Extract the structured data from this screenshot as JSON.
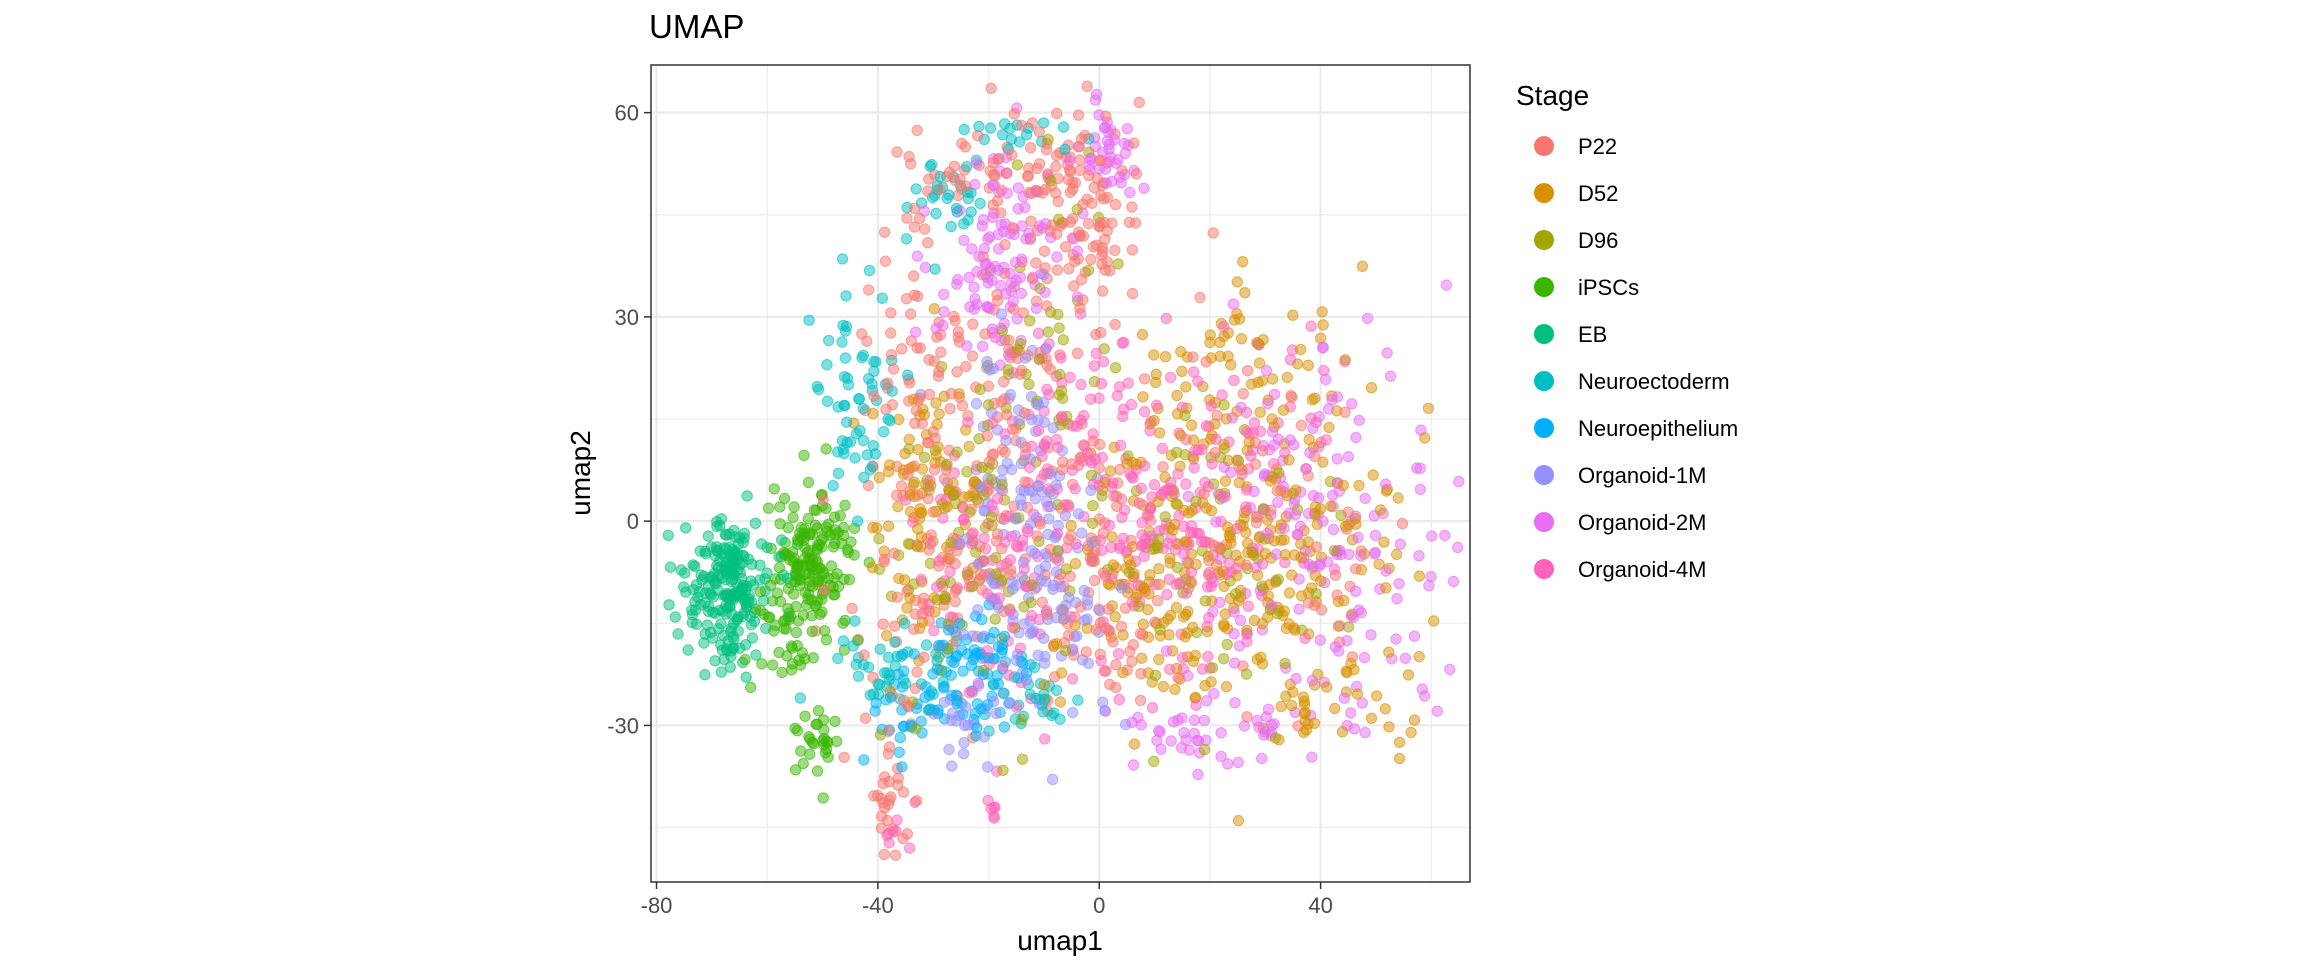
{
  "chart_data": {
    "type": "scatter",
    "title": "UMAP",
    "xlabel": "umap1",
    "ylabel": "umap2",
    "xlim": [
      -81,
      67
    ],
    "ylim": [
      -53,
      67
    ],
    "x_ticks": [
      -80,
      -40,
      0,
      40
    ],
    "y_ticks": [
      -30,
      0,
      30,
      60
    ],
    "x_tick_labels": [
      "-80",
      "-40",
      "0",
      "40"
    ],
    "y_tick_labels": [
      "-30",
      "0",
      "30",
      "60"
    ],
    "x_minor": [
      -60,
      -20,
      20,
      60
    ],
    "y_minor": [
      -45,
      -15,
      15,
      45
    ],
    "grid": true,
    "point_alpha": 0.5,
    "legend": {
      "title": "Stage",
      "position": "right",
      "entries": [
        {
          "label": "P22",
          "color": "#F8766D"
        },
        {
          "label": "D52",
          "color": "#D89000"
        },
        {
          "label": "D96",
          "color": "#A3A500"
        },
        {
          "label": "iPSCs",
          "color": "#39B600"
        },
        {
          "label": "EB",
          "color": "#00BF7D"
        },
        {
          "label": "Neuroectoderm",
          "color": "#00BFC4"
        },
        {
          "label": "Neuroepithelium",
          "color": "#00B0F6"
        },
        {
          "label": "Organoid-1M",
          "color": "#9590FF"
        },
        {
          "label": "Organoid-2M",
          "color": "#E76BF3"
        },
        {
          "label": "Organoid-4M",
          "color": "#FF62BC"
        }
      ]
    },
    "series": [
      {
        "name": "P22",
        "clusters": [
          {
            "center": [
              -5,
              48
            ],
            "spread": [
              6,
              8
            ],
            "n": 110
          },
          {
            "center": [
              -14,
              22
            ],
            "spread": [
              10,
              14
            ],
            "n": 110
          },
          {
            "center": [
              -33,
              26
            ],
            "spread": [
              4,
              14
            ],
            "n": 50
          },
          {
            "center": [
              -28,
              -6
            ],
            "spread": [
              9,
              12
            ],
            "n": 110
          },
          {
            "center": [
              0,
              -12
            ],
            "spread": [
              6,
              9
            ],
            "n": 60
          },
          {
            "center": [
              -38,
              -40
            ],
            "spread": [
              3,
              5
            ],
            "n": 30
          },
          {
            "center": [
              -20,
              52
            ],
            "spread": [
              7,
              3
            ],
            "n": 35
          },
          {
            "center": [
              30,
              0
            ],
            "spread": [
              14,
              14
            ],
            "n": 60
          }
        ]
      },
      {
        "name": "D52",
        "clusters": [
          {
            "center": [
              28,
              2
            ],
            "spread": [
              14,
              14
            ],
            "n": 260
          },
          {
            "center": [
              -32,
              3
            ],
            "spread": [
              6,
              10
            ],
            "n": 80
          },
          {
            "center": [
              10,
              -12
            ],
            "spread": [
              9,
              9
            ],
            "n": 70
          },
          {
            "center": [
              23,
              27
            ],
            "spread": [
              2,
              1.5
            ],
            "n": 12
          },
          {
            "center": [
              40,
              -28
            ],
            "spread": [
              8,
              3
            ],
            "n": 30
          }
        ]
      },
      {
        "name": "D96",
        "clusters": [
          {
            "center": [
              -22,
              -4
            ],
            "spread": [
              8,
              12
            ],
            "n": 90
          },
          {
            "center": [
              20,
              -4
            ],
            "spread": [
              12,
              13
            ],
            "n": 80
          },
          {
            "center": [
              -8,
              30
            ],
            "spread": [
              6,
              10
            ],
            "n": 40
          }
        ]
      },
      {
        "name": "iPSCs",
        "clusters": [
          {
            "center": [
              -52,
              -6
            ],
            "spread": [
              4,
              5
            ],
            "n": 150
          },
          {
            "center": [
              -51,
              -33
            ],
            "spread": [
              2,
              2.5
            ],
            "n": 28
          },
          {
            "center": [
              -56,
              -16
            ],
            "spread": [
              5,
              4
            ],
            "n": 40
          }
        ]
      },
      {
        "name": "EB",
        "clusters": [
          {
            "center": [
              -67,
              -10
            ],
            "spread": [
              4,
              5
            ],
            "n": 220
          }
        ]
      },
      {
        "name": "Neuroectoderm",
        "clusters": [
          {
            "center": [
              -44,
              18
            ],
            "spread": [
              4,
              8
            ],
            "n": 60
          },
          {
            "center": [
              -28,
              48
            ],
            "spread": [
              5,
              5
            ],
            "n": 30
          },
          {
            "center": [
              -38,
              -22
            ],
            "spread": [
              5,
              4
            ],
            "n": 40
          },
          {
            "center": [
              -16,
              57
            ],
            "spread": [
              6,
              1.5
            ],
            "n": 18
          },
          {
            "center": [
              -12,
              -26
            ],
            "spread": [
              4,
              3
            ],
            "n": 25
          }
        ]
      },
      {
        "name": "Neuroepithelium",
        "clusters": [
          {
            "center": [
              -22,
              -23
            ],
            "spread": [
              5,
              5
            ],
            "n": 80
          },
          {
            "center": [
              -35,
              -28
            ],
            "spread": [
              4,
              4
            ],
            "n": 30
          }
        ]
      },
      {
        "name": "Organoid-1M",
        "clusters": [
          {
            "center": [
              -16,
              0
            ],
            "spread": [
              6,
              14
            ],
            "n": 120
          },
          {
            "center": [
              -6,
              -12
            ],
            "spread": [
              5,
              8
            ],
            "n": 50
          },
          {
            "center": [
              -24,
              -30
            ],
            "spread": [
              3,
              4
            ],
            "n": 20
          }
        ]
      },
      {
        "name": "Organoid-2M",
        "clusters": [
          {
            "center": [
              -18,
              38
            ],
            "spread": [
              6,
              8
            ],
            "n": 110
          },
          {
            "center": [
              40,
              -4
            ],
            "spread": [
              12,
              14
            ],
            "n": 180
          },
          {
            "center": [
              1,
              55
            ],
            "spread": [
              3,
              4
            ],
            "n": 40
          },
          {
            "center": [
              22,
              -30
            ],
            "spread": [
              10,
              3
            ],
            "n": 40
          }
        ]
      },
      {
        "name": "Organoid-4M",
        "clusters": [
          {
            "center": [
              12,
              2
            ],
            "spread": [
              12,
              13
            ],
            "n": 220
          },
          {
            "center": [
              -20,
              -6
            ],
            "spread": [
              8,
              12
            ],
            "n": 90
          },
          {
            "center": [
              -3,
              15
            ],
            "spread": [
              6,
              6
            ],
            "n": 40
          },
          {
            "center": [
              -38,
              -46
            ],
            "spread": [
              1,
              1.5
            ],
            "n": 6
          },
          {
            "center": [
              -19,
              -43
            ],
            "spread": [
              1,
              1.5
            ],
            "n": 6
          }
        ]
      }
    ]
  }
}
